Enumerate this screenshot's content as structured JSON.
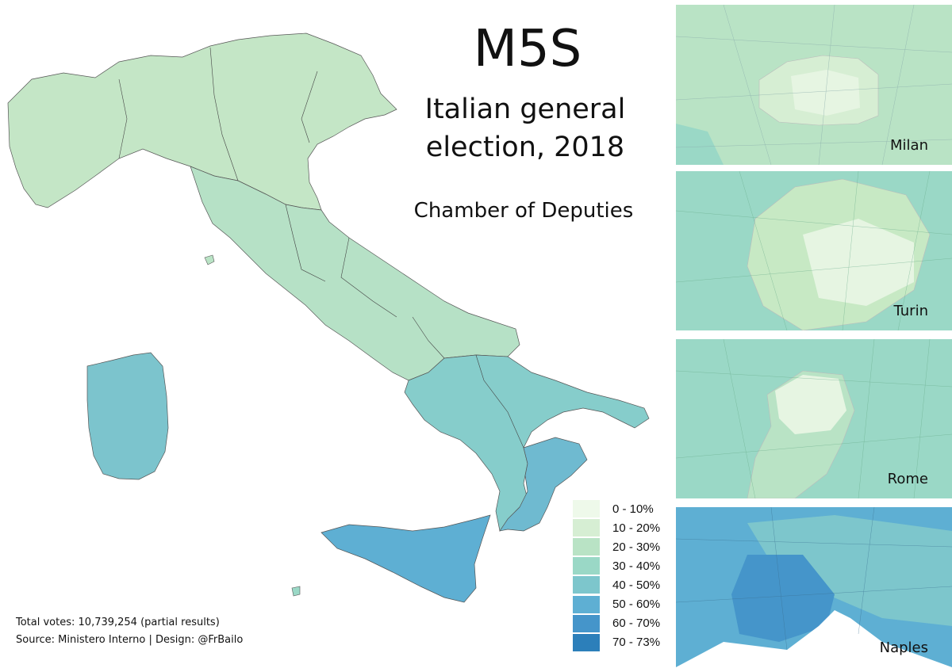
{
  "header": {
    "title": "M5S",
    "subtitle_line1": "Italian general",
    "subtitle_line2": "election, 2018",
    "chamber": "Chamber of Deputies"
  },
  "legend": [
    {
      "label": "0 - 10%",
      "color": "#eef9ea"
    },
    {
      "label": "10 - 20%",
      "color": "#d6eed3"
    },
    {
      "label": "20 - 30%",
      "color": "#b9e3c5"
    },
    {
      "label": "30 - 40%",
      "color": "#9ad8c6"
    },
    {
      "label": "40 - 50%",
      "color": "#7dc6cc"
    },
    {
      "label": "50 - 60%",
      "color": "#5eafd3"
    },
    {
      "label": "60 - 70%",
      "color": "#4595ca"
    },
    {
      "label": "70 - 73%",
      "color": "#2c7fba"
    }
  ],
  "footnotes": {
    "total_votes": "Total votes: 10,739,254 (partial results)",
    "source": "Source: Ministero Interno | Design: @FrBailo"
  },
  "insets": [
    {
      "label": "Milan",
      "outer_color": "#b9e3c5",
      "inner_color": "#d6eed3",
      "core_color": "#e6f5e2"
    },
    {
      "label": "Turin",
      "outer_color": "#9ad8c6",
      "inner_color": "#c7e9c4",
      "core_color": "#e6f5e2"
    },
    {
      "label": "Rome",
      "outer_color": "#9ad8c6",
      "inner_color": "#b9e3c5",
      "core_color": "#e6f5e2"
    },
    {
      "label": "Naples",
      "outer_color": "#5eafd3",
      "inner_color": "#4595ca",
      "core_color": "#7dc6cc"
    }
  ]
}
